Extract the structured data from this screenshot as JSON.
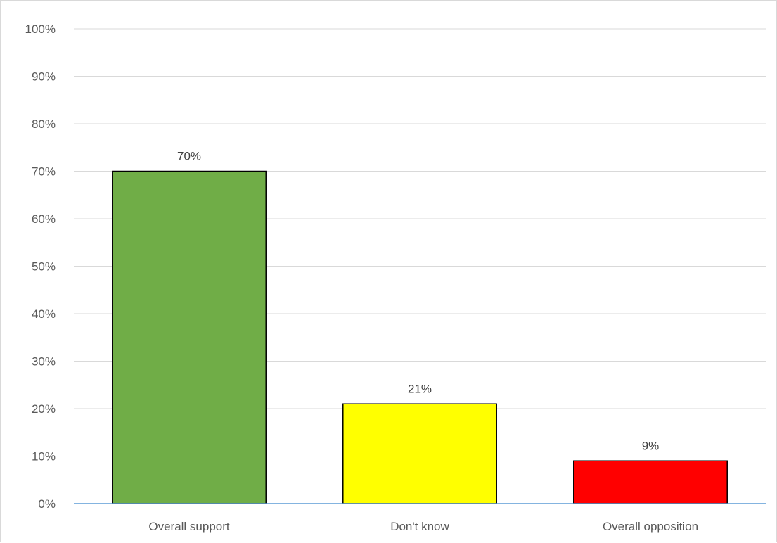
{
  "chart_data": {
    "type": "bar",
    "categories": [
      "Overall support",
      "Don't know",
      "Overall opposition"
    ],
    "values": [
      70,
      21,
      9
    ],
    "data_labels": [
      "70%",
      "21%",
      "9%"
    ],
    "colors": [
      "#70ad47",
      "#ffff00",
      "#ff0000"
    ],
    "bar_outline": "#000000",
    "title": "",
    "xlabel": "",
    "ylabel": "",
    "ylim": [
      0,
      100
    ],
    "y_ticks": [
      0,
      10,
      20,
      30,
      40,
      50,
      60,
      70,
      80,
      90,
      100
    ],
    "y_tick_labels": [
      "0%",
      "10%",
      "20%",
      "30%",
      "40%",
      "50%",
      "60%",
      "70%",
      "80%",
      "90%",
      "100%"
    ],
    "grid": true,
    "grid_color": "#d9d9d9",
    "baseline_color": "#5b9bd5",
    "legend": "none"
  }
}
